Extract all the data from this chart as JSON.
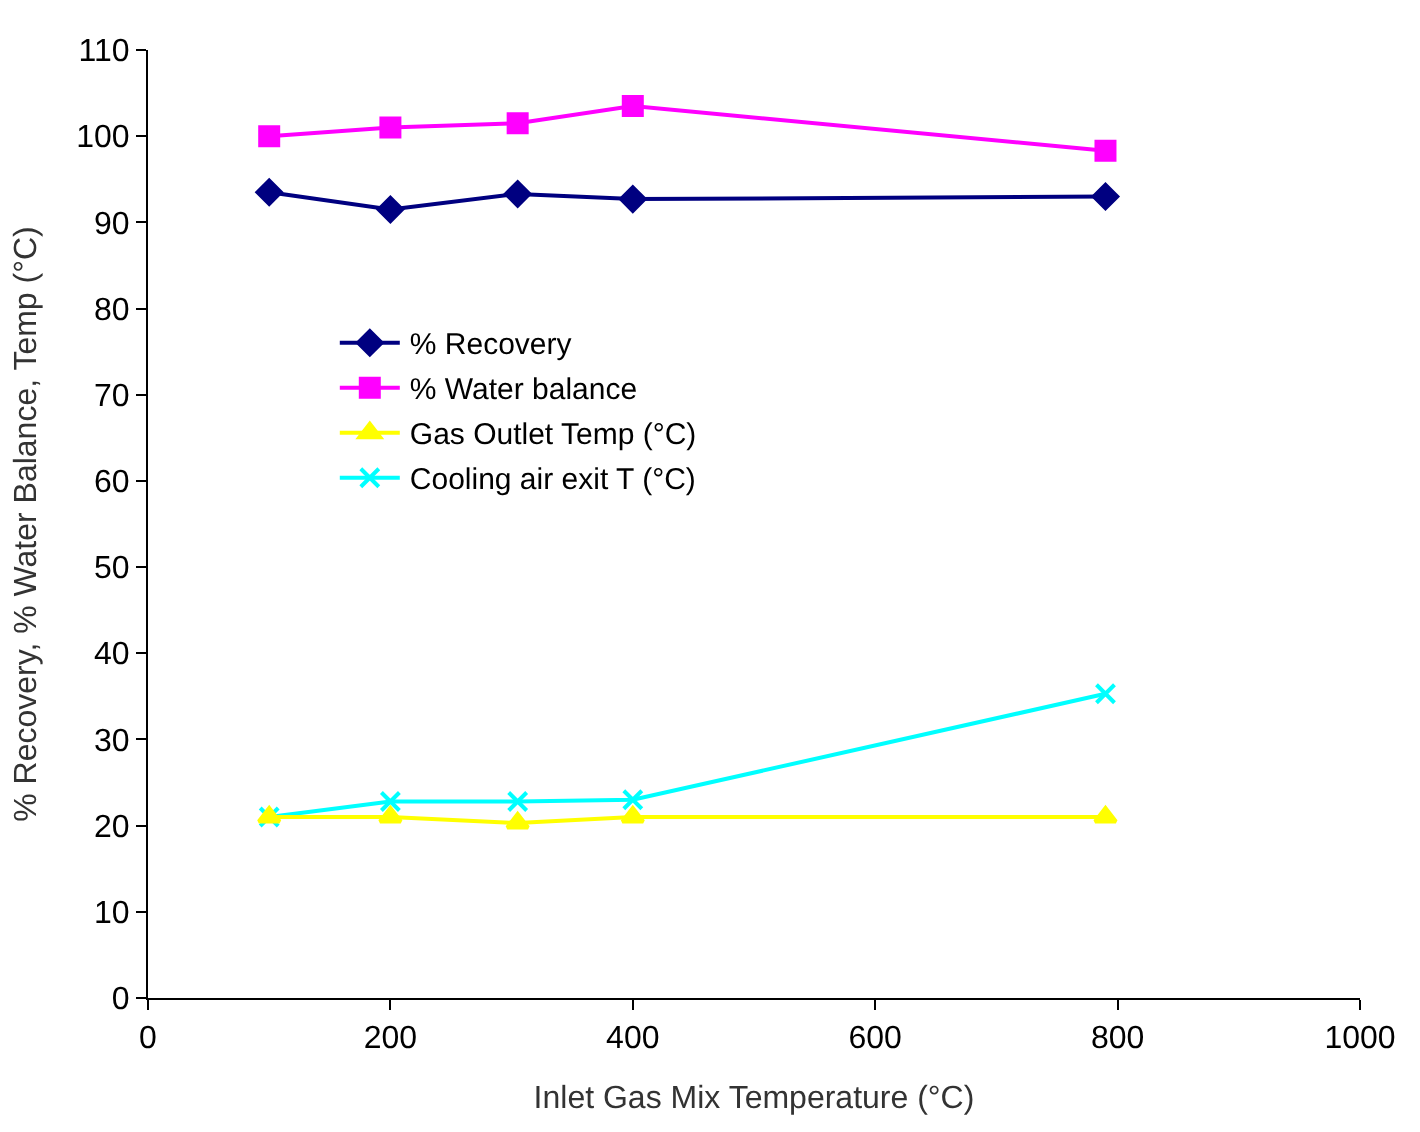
{
  "chart_data": {
    "type": "line",
    "xlabel": "Inlet Gas Mix Temperature (°C)",
    "ylabel": "% Recovery, % Water Balance, Temp (°C)",
    "x": [
      100,
      200,
      305,
      400,
      790
    ],
    "series": [
      {
        "name": "% Recovery",
        "color": "#000080",
        "marker": "diamond",
        "values": [
          93.5,
          91.5,
          93.3,
          92.7,
          93
        ]
      },
      {
        "name": "% Water balance",
        "color": "#ff00ff",
        "marker": "square",
        "values": [
          100,
          101,
          101.5,
          103.5,
          98.3
        ]
      },
      {
        "name": "Gas Outlet Temp (°C)",
        "color": "#ffff00",
        "marker": "triangle",
        "values": [
          21,
          21,
          20.3,
          21,
          21
        ]
      },
      {
        "name": "Cooling air exit T (°C)",
        "color": "#00ffff",
        "marker": "cross",
        "values": [
          21,
          22.8,
          22.8,
          23,
          35.3
        ]
      }
    ],
    "xlim": [
      0,
      1000
    ],
    "xticks": [
      0,
      200,
      400,
      600,
      800,
      1000
    ],
    "ylim": [
      0,
      110
    ],
    "yticks": [
      0,
      10,
      20,
      30,
      40,
      50,
      60,
      70,
      80,
      90,
      100,
      110
    ],
    "grid": false,
    "legend": "center left"
  }
}
